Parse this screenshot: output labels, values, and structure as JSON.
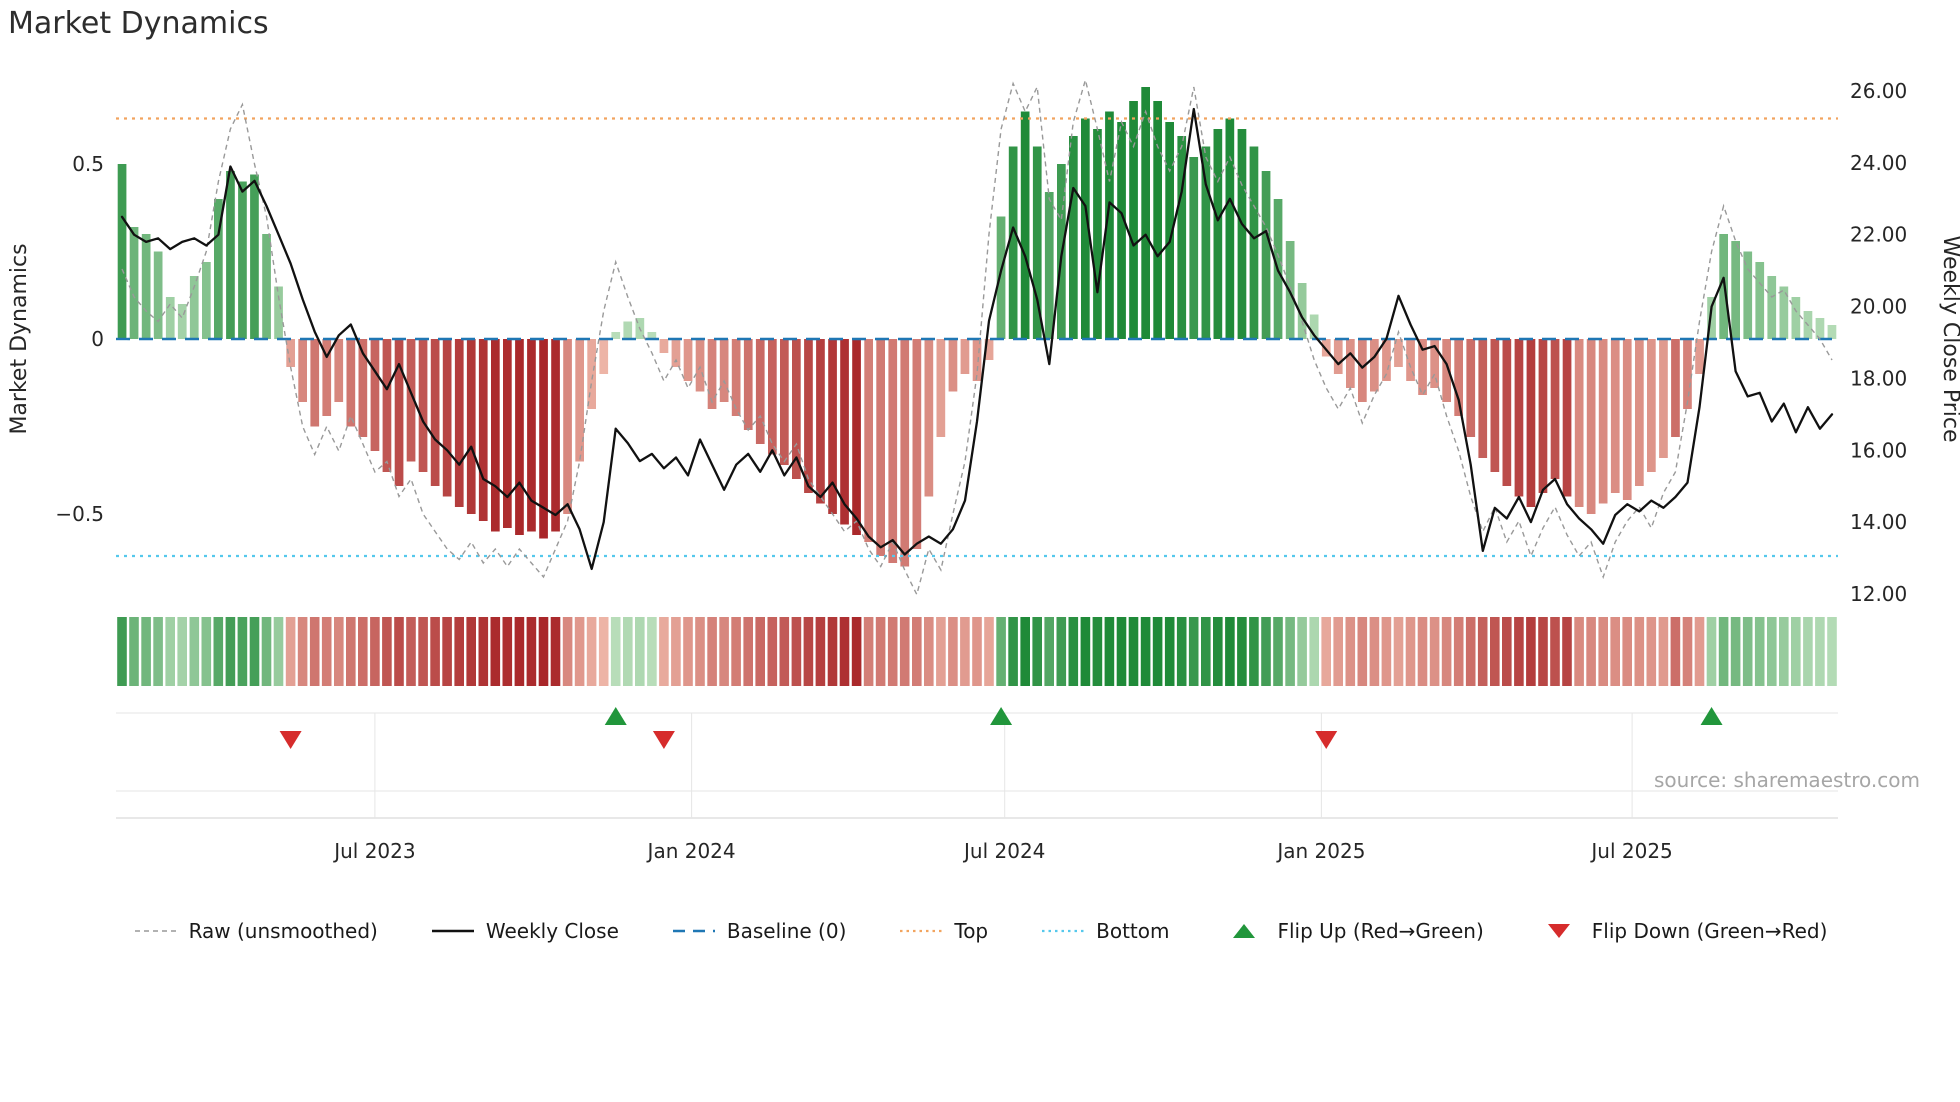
{
  "chart_data": {
    "type": "bar+line",
    "title": "Market Dynamics",
    "source": "source: sharemaestro.com",
    "left_axis": {
      "label": "Market Dynamics",
      "ticks": [
        {
          "value": 0.5,
          "label": "0.5"
        },
        {
          "value": 0,
          "label": "0"
        },
        {
          "value": -0.5,
          "label": "−0.5"
        }
      ],
      "range": [
        -0.73,
        0.755
      ]
    },
    "right_axis": {
      "label": "Weekly Close Price",
      "ticks": [
        {
          "value": 26,
          "label": "26.00"
        },
        {
          "value": 24,
          "label": "24.00"
        },
        {
          "value": 22,
          "label": "22.00"
        },
        {
          "value": 20,
          "label": "20.00"
        },
        {
          "value": 18,
          "label": "18.00"
        },
        {
          "value": 16,
          "label": "16.00"
        },
        {
          "value": 14,
          "label": "14.00"
        },
        {
          "value": 12,
          "label": "12.00"
        }
      ],
      "range": [
        12,
        26.45
      ]
    },
    "x_ticks": [
      {
        "label": "Jul 2023",
        "index": 21.0
      },
      {
        "label": "Jan 2024",
        "index": 47.3
      },
      {
        "label": "Jul 2024",
        "index": 73.3
      },
      {
        "label": "Jan 2025",
        "index": 99.6
      },
      {
        "label": "Jul 2025",
        "index": 125.4
      }
    ],
    "baseline_value": 0,
    "top_level": 0.63,
    "bottom_level": -0.62,
    "series": {
      "dynamics_smoothed": [
        0.5,
        0.32,
        0.3,
        0.25,
        0.12,
        0.1,
        0.18,
        0.22,
        0.4,
        0.48,
        0.45,
        0.47,
        0.3,
        0.15,
        -0.08,
        -0.18,
        -0.25,
        -0.22,
        -0.18,
        -0.25,
        -0.28,
        -0.32,
        -0.38,
        -0.42,
        -0.35,
        -0.38,
        -0.42,
        -0.45,
        -0.48,
        -0.5,
        -0.52,
        -0.55,
        -0.54,
        -0.56,
        -0.55,
        -0.57,
        -0.55,
        -0.5,
        -0.35,
        -0.2,
        -0.1,
        0.02,
        0.05,
        0.06,
        0.02,
        -0.04,
        -0.08,
        -0.12,
        -0.15,
        -0.2,
        -0.18,
        -0.22,
        -0.26,
        -0.3,
        -0.33,
        -0.36,
        -0.4,
        -0.44,
        -0.47,
        -0.5,
        -0.53,
        -0.56,
        -0.58,
        -0.62,
        -0.64,
        -0.65,
        -0.6,
        -0.45,
        -0.28,
        -0.15,
        -0.1,
        -0.12,
        -0.06,
        0.35,
        0.55,
        0.65,
        0.55,
        0.42,
        0.5,
        0.58,
        0.63,
        0.6,
        0.65,
        0.62,
        0.68,
        0.72,
        0.68,
        0.62,
        0.58,
        0.52,
        0.55,
        0.6,
        0.63,
        0.6,
        0.55,
        0.48,
        0.4,
        0.28,
        0.16,
        0.07,
        -0.05,
        -0.1,
        -0.14,
        -0.18,
        -0.15,
        -0.12,
        -0.08,
        -0.12,
        -0.16,
        -0.14,
        -0.18,
        -0.22,
        -0.28,
        -0.34,
        -0.38,
        -0.42,
        -0.45,
        -0.48,
        -0.44,
        -0.4,
        -0.45,
        -0.48,
        -0.5,
        -0.47,
        -0.44,
        -0.46,
        -0.42,
        -0.38,
        -0.34,
        -0.28,
        -0.2,
        -0.1,
        0.12,
        0.3,
        0.28,
        0.25,
        0.22,
        0.18,
        0.15,
        0.12,
        0.08,
        0.06,
        0.04
      ],
      "raw_unsmoothed": [
        0.2,
        0.12,
        0.08,
        0.05,
        0.1,
        0.06,
        0.15,
        0.25,
        0.45,
        0.6,
        0.67,
        0.5,
        0.35,
        0.12,
        -0.08,
        -0.25,
        -0.33,
        -0.25,
        -0.32,
        -0.22,
        -0.3,
        -0.38,
        -0.35,
        -0.45,
        -0.4,
        -0.5,
        -0.55,
        -0.6,
        -0.63,
        -0.58,
        -0.64,
        -0.6,
        -0.65,
        -0.6,
        -0.64,
        -0.68,
        -0.6,
        -0.52,
        -0.35,
        -0.12,
        0.08,
        0.22,
        0.12,
        0.03,
        -0.04,
        -0.12,
        -0.06,
        -0.14,
        -0.08,
        -0.18,
        -0.12,
        -0.2,
        -0.26,
        -0.22,
        -0.3,
        -0.35,
        -0.3,
        -0.4,
        -0.45,
        -0.5,
        -0.55,
        -0.52,
        -0.6,
        -0.65,
        -0.58,
        -0.66,
        -0.73,
        -0.6,
        -0.66,
        -0.5,
        -0.35,
        -0.1,
        0.3,
        0.6,
        0.73,
        0.65,
        0.72,
        0.4,
        0.34,
        0.62,
        0.74,
        0.6,
        0.45,
        0.62,
        0.55,
        0.65,
        0.55,
        0.48,
        0.55,
        0.72,
        0.52,
        0.45,
        0.52,
        0.44,
        0.38,
        0.32,
        0.24,
        0.15,
        0.05,
        -0.06,
        -0.14,
        -0.2,
        -0.14,
        -0.24,
        -0.16,
        -0.1,
        0.02,
        -0.08,
        -0.16,
        -0.1,
        -0.22,
        -0.32,
        -0.45,
        -0.55,
        -0.48,
        -0.58,
        -0.52,
        -0.62,
        -0.54,
        -0.48,
        -0.56,
        -0.62,
        -0.58,
        -0.68,
        -0.58,
        -0.52,
        -0.48,
        -0.54,
        -0.44,
        -0.38,
        -0.18,
        0.05,
        0.25,
        0.38,
        0.28,
        0.2,
        0.16,
        0.12,
        0.14,
        0.08,
        0.04,
        0,
        -0.06
      ],
      "weekly_close": [
        22.5,
        22.0,
        21.8,
        21.9,
        21.6,
        21.8,
        21.9,
        21.7,
        22.0,
        23.9,
        23.2,
        23.5,
        22.8,
        22.0,
        21.2,
        20.2,
        19.3,
        18.6,
        19.2,
        19.5,
        18.7,
        18.2,
        17.7,
        18.4,
        17.6,
        16.8,
        16.3,
        16.0,
        15.6,
        16.1,
        15.2,
        15.0,
        14.7,
        15.1,
        14.6,
        14.4,
        14.2,
        14.5,
        13.8,
        12.7,
        14.0,
        16.6,
        16.2,
        15.7,
        15.9,
        15.5,
        15.8,
        15.3,
        16.3,
        15.6,
        14.9,
        15.6,
        15.9,
        15.4,
        16.0,
        15.3,
        15.8,
        15.0,
        14.7,
        15.1,
        14.5,
        14.1,
        13.6,
        13.3,
        13.5,
        13.1,
        13.4,
        13.6,
        13.4,
        13.8,
        14.6,
        16.8,
        19.6,
        21.0,
        22.2,
        21.4,
        20.2,
        18.4,
        21.4,
        23.3,
        22.8,
        20.4,
        22.9,
        22.6,
        21.7,
        22.0,
        21.4,
        21.8,
        23.2,
        25.5,
        23.4,
        22.4,
        23.0,
        22.3,
        21.9,
        22.1,
        21.0,
        20.4,
        19.7,
        19.2,
        18.8,
        18.4,
        18.7,
        18.3,
        18.6,
        19.1,
        20.3,
        19.5,
        18.8,
        18.9,
        18.4,
        17.4,
        15.6,
        13.2,
        14.4,
        14.1,
        14.7,
        14.0,
        14.9,
        15.2,
        14.5,
        14.1,
        13.8,
        13.4,
        14.2,
        14.5,
        14.3,
        14.6,
        14.4,
        14.7,
        15.1,
        17.2,
        20.0,
        20.8,
        18.2,
        17.5,
        17.6,
        16.8,
        17.3,
        16.5,
        17.2,
        16.6,
        17.0
      ]
    },
    "muted_bars": [
      37,
      38,
      39,
      40,
      62,
      63,
      64,
      65,
      66,
      67,
      68,
      121,
      122,
      123,
      124,
      125,
      126,
      127,
      128
    ],
    "flip_up_indices": [
      41,
      73,
      132
    ],
    "flip_down_indices": [
      14,
      45,
      100
    ],
    "legend": [
      {
        "label": "Raw (unsmoothed)"
      },
      {
        "label": "Weekly Close"
      },
      {
        "label": "Baseline (0)"
      },
      {
        "label": "Top"
      },
      {
        "label": "Bottom"
      },
      {
        "label": "Flip Up (Red→Green)"
      },
      {
        "label": "Flip Down (Green→Red)"
      }
    ],
    "colors": {
      "bar_green_dark": "#1f8a38",
      "bar_green_light": "#d3ecd0",
      "bar_red_dark": "#a31a1e",
      "bar_red_light": "#f7c9b8",
      "weekly_close_line": "#111111",
      "raw_line": "#999999",
      "baseline": "#1f77b4",
      "top": "#f2a45f",
      "bottom": "#55c8ec",
      "flip_up": "#21963b",
      "flip_down": "#d62c2c"
    }
  }
}
